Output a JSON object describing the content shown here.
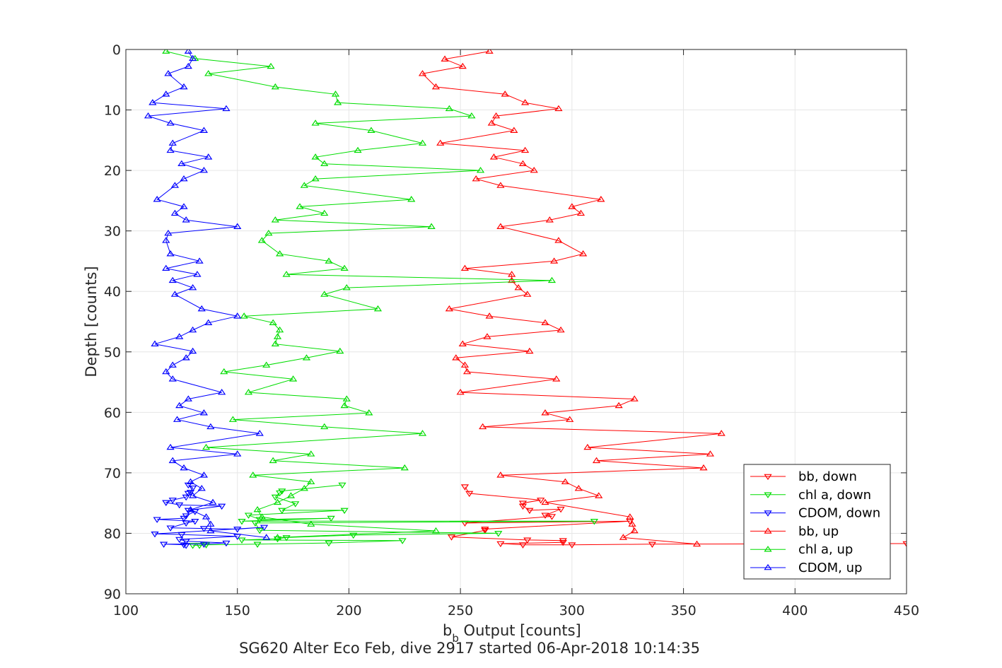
{
  "chart_data": {
    "type": "scatter",
    "title": "",
    "xlabel_main": "b",
    "xlabel_sub": "b",
    "xlabel_rest": " Output [counts]",
    "ylabel": "Depth [counts]",
    "caption": "SG620 Alter Eco Feb, dive 2917 started 06-Apr-2018 10:14:35",
    "xlim": [
      100,
      450
    ],
    "ylim": [
      0,
      90
    ],
    "y_reversed": true,
    "grid": true,
    "legend_position": "bottom-right",
    "x_ticks": [
      100,
      150,
      200,
      250,
      300,
      350,
      400,
      450
    ],
    "y_ticks": [
      0,
      10,
      20,
      30,
      40,
      50,
      60,
      70,
      80,
      90
    ],
    "series": [
      {
        "name": "bb, down",
        "color": "#ff0000",
        "marker": "triangle-down",
        "points": [
          [
            252,
            72.3
          ],
          [
            254,
            73.4
          ],
          [
            286,
            74.5
          ],
          [
            278,
            75.0
          ],
          [
            278,
            75.5
          ],
          [
            281,
            76.2
          ],
          [
            295,
            76.0
          ],
          [
            288,
            77.0
          ],
          [
            291,
            77.2
          ],
          [
            252,
            78.3
          ],
          [
            326,
            78.0
          ],
          [
            261,
            79.3
          ],
          [
            261,
            79.5
          ],
          [
            246,
            80.6
          ],
          [
            280,
            81.1
          ],
          [
            296,
            81.2
          ],
          [
            296,
            81.5
          ],
          [
            268,
            81.7
          ],
          [
            278,
            81.9
          ],
          [
            300,
            81.9
          ],
          [
            336,
            81.8
          ],
          [
            450,
            81.7
          ]
        ]
      },
      {
        "name": "chl a, down",
        "color": "#00dd00",
        "marker": "triangle-down",
        "points": [
          [
            197,
            72.0
          ],
          [
            170,
            73.0
          ],
          [
            169,
            73.3
          ],
          [
            167,
            74.0
          ],
          [
            176,
            75.1
          ],
          [
            170,
            76.2
          ],
          [
            198,
            76.2
          ],
          [
            155,
            77.0
          ],
          [
            160,
            77.7
          ],
          [
            192,
            77.5
          ],
          [
            152,
            78.0
          ],
          [
            310,
            78.0
          ],
          [
            158,
            78.3
          ],
          [
            160,
            79.5
          ],
          [
            267,
            80.0
          ],
          [
            202,
            80.3
          ],
          [
            172,
            80.7
          ],
          [
            168,
            80.9
          ],
          [
            152,
            81.1
          ],
          [
            224,
            81.2
          ],
          [
            191,
            81.6
          ],
          [
            159,
            81.8
          ],
          [
            136,
            81.9
          ],
          [
            133,
            82.0
          ],
          [
            130,
            82.0
          ]
        ]
      },
      {
        "name": "CDOM, down",
        "color": "#0000ff",
        "marker": "triangle-down",
        "points": [
          [
            128,
            72.0
          ],
          [
            130,
            72.5
          ],
          [
            129,
            73.2
          ],
          [
            128,
            73.4
          ],
          [
            127,
            74.0
          ],
          [
            121,
            74.5
          ],
          [
            118,
            74.9
          ],
          [
            124,
            75.3
          ],
          [
            143,
            75.5
          ],
          [
            128,
            76.2
          ],
          [
            131,
            76.4
          ],
          [
            127,
            77.1
          ],
          [
            126,
            77.5
          ],
          [
            114,
            77.7
          ],
          [
            131,
            78.0
          ],
          [
            127,
            78.3
          ],
          [
            120,
            79.1
          ],
          [
            135,
            79.2
          ],
          [
            150,
            79.3
          ],
          [
            162,
            79.0
          ],
          [
            113,
            80.1
          ],
          [
            125,
            80.2
          ],
          [
            150,
            80.5
          ],
          [
            124,
            81.0
          ],
          [
            127,
            81.3
          ],
          [
            145,
            81.6
          ],
          [
            135,
            81.8
          ],
          [
            117,
            81.8
          ],
          [
            126,
            81.9
          ],
          [
            127,
            82.0
          ]
        ]
      },
      {
        "name": "bb, up",
        "color": "#ff0000",
        "marker": "triangle-up",
        "points": [
          [
            263,
            0.3
          ],
          [
            243,
            1.6
          ],
          [
            251,
            2.8
          ],
          [
            233,
            4.0
          ],
          [
            239,
            6.2
          ],
          [
            270,
            7.4
          ],
          [
            279,
            8.8
          ],
          [
            294,
            9.8
          ],
          [
            266,
            11.0
          ],
          [
            264,
            12.2
          ],
          [
            274,
            13.4
          ],
          [
            241,
            15.5
          ],
          [
            279,
            16.7
          ],
          [
            265,
            17.8
          ],
          [
            278,
            18.9
          ],
          [
            283,
            20.0
          ],
          [
            257,
            21.4
          ],
          [
            268,
            22.5
          ],
          [
            313,
            24.8
          ],
          [
            300,
            26.0
          ],
          [
            304,
            27.1
          ],
          [
            290,
            28.2
          ],
          [
            268,
            29.3
          ],
          [
            294,
            31.6
          ],
          [
            305,
            33.8
          ],
          [
            292,
            35.0
          ],
          [
            252,
            36.2
          ],
          [
            273,
            37.2
          ],
          [
            273,
            38.2
          ],
          [
            276,
            39.4
          ],
          [
            280,
            40.5
          ],
          [
            245,
            42.9
          ],
          [
            263,
            44.1
          ],
          [
            288,
            45.2
          ],
          [
            295,
            46.4
          ],
          [
            262,
            47.5
          ],
          [
            251,
            48.7
          ],
          [
            281,
            49.9
          ],
          [
            248,
            51.0
          ],
          [
            252,
            52.2
          ],
          [
            253,
            53.3
          ],
          [
            293,
            54.5
          ],
          [
            250,
            56.7
          ],
          [
            328,
            57.8
          ],
          [
            321,
            58.9
          ],
          [
            288,
            60.1
          ],
          [
            299,
            61.2
          ],
          [
            260,
            62.4
          ],
          [
            367,
            63.5
          ],
          [
            307,
            65.8
          ],
          [
            362,
            66.9
          ],
          [
            311,
            68.0
          ],
          [
            359,
            69.2
          ],
          [
            268,
            70.4
          ],
          [
            297,
            71.5
          ],
          [
            303,
            72.6
          ],
          [
            312,
            73.8
          ],
          [
            288,
            74.9
          ],
          [
            326,
            77.3
          ],
          [
            327,
            78.5
          ],
          [
            328,
            79.6
          ],
          [
            323,
            80.7
          ],
          [
            356,
            81.8
          ]
        ]
      },
      {
        "name": "chl a, up",
        "color": "#00dd00",
        "marker": "triangle-up",
        "points": [
          [
            118,
            0.3
          ],
          [
            131,
            1.5
          ],
          [
            165,
            2.8
          ],
          [
            137,
            4.0
          ],
          [
            167,
            6.2
          ],
          [
            194,
            7.4
          ],
          [
            195,
            8.8
          ],
          [
            245,
            9.8
          ],
          [
            255,
            11.0
          ],
          [
            185,
            12.2
          ],
          [
            210,
            13.4
          ],
          [
            233,
            15.5
          ],
          [
            204,
            16.7
          ],
          [
            185,
            17.8
          ],
          [
            189,
            18.9
          ],
          [
            259,
            20.0
          ],
          [
            185,
            21.4
          ],
          [
            180,
            22.5
          ],
          [
            228,
            24.8
          ],
          [
            178,
            26.0
          ],
          [
            189,
            27.1
          ],
          [
            167,
            28.2
          ],
          [
            237,
            29.3
          ],
          [
            164,
            30.4
          ],
          [
            161,
            31.6
          ],
          [
            169,
            33.8
          ],
          [
            191,
            35.0
          ],
          [
            198,
            36.2
          ],
          [
            172,
            37.2
          ],
          [
            291,
            38.2
          ],
          [
            199,
            39.4
          ],
          [
            189,
            40.5
          ],
          [
            213,
            42.9
          ],
          [
            153,
            44.1
          ],
          [
            166,
            45.2
          ],
          [
            169,
            46.4
          ],
          [
            168,
            47.5
          ],
          [
            167,
            48.7
          ],
          [
            196,
            49.9
          ],
          [
            181,
            51.0
          ],
          [
            163,
            52.2
          ],
          [
            144,
            53.3
          ],
          [
            175,
            54.5
          ],
          [
            155,
            56.7
          ],
          [
            199,
            57.8
          ],
          [
            198,
            58.9
          ],
          [
            209,
            60.1
          ],
          [
            148,
            61.2
          ],
          [
            189,
            62.4
          ],
          [
            233,
            63.5
          ],
          [
            136,
            65.8
          ],
          [
            183,
            66.9
          ],
          [
            166,
            68.0
          ],
          [
            225,
            69.2
          ],
          [
            157,
            70.4
          ],
          [
            183,
            71.5
          ],
          [
            180,
            72.6
          ],
          [
            174,
            73.8
          ],
          [
            168,
            74.9
          ],
          [
            159,
            76.1
          ],
          [
            161,
            77.3
          ],
          [
            183,
            78.5
          ],
          [
            239,
            79.6
          ],
          [
            168,
            80.7
          ]
        ]
      },
      {
        "name": "CDOM, up",
        "color": "#0000ff",
        "marker": "triangle-up",
        "points": [
          [
            128,
            0.3
          ],
          [
            130,
            1.5
          ],
          [
            128,
            2.8
          ],
          [
            119,
            4.0
          ],
          [
            126,
            6.2
          ],
          [
            118,
            7.4
          ],
          [
            112,
            8.8
          ],
          [
            145,
            9.8
          ],
          [
            110,
            11.0
          ],
          [
            120,
            12.2
          ],
          [
            135,
            13.4
          ],
          [
            121,
            15.5
          ],
          [
            120,
            16.7
          ],
          [
            137,
            17.8
          ],
          [
            125,
            18.9
          ],
          [
            135,
            20.0
          ],
          [
            126,
            21.4
          ],
          [
            122,
            22.5
          ],
          [
            114,
            24.8
          ],
          [
            126,
            26.0
          ],
          [
            122,
            27.1
          ],
          [
            127,
            28.2
          ],
          [
            150,
            29.3
          ],
          [
            119,
            30.4
          ],
          [
            118,
            31.6
          ],
          [
            120,
            33.8
          ],
          [
            133,
            35.0
          ],
          [
            118,
            36.2
          ],
          [
            132,
            37.2
          ],
          [
            121,
            38.2
          ],
          [
            130,
            39.4
          ],
          [
            122,
            40.5
          ],
          [
            134,
            42.9
          ],
          [
            150,
            44.1
          ],
          [
            137,
            45.2
          ],
          [
            130,
            46.4
          ],
          [
            124,
            47.5
          ],
          [
            113,
            48.7
          ],
          [
            130,
            49.9
          ],
          [
            127,
            51.0
          ],
          [
            121,
            52.2
          ],
          [
            118,
            53.3
          ],
          [
            121,
            54.5
          ],
          [
            143,
            56.7
          ],
          [
            128,
            57.8
          ],
          [
            124,
            58.9
          ],
          [
            135,
            60.1
          ],
          [
            123,
            61.2
          ],
          [
            138,
            62.4
          ],
          [
            160,
            63.5
          ],
          [
            120,
            65.8
          ],
          [
            150,
            66.9
          ],
          [
            121,
            68.0
          ],
          [
            126,
            69.2
          ],
          [
            135,
            70.4
          ],
          [
            129,
            71.5
          ],
          [
            134,
            72.6
          ],
          [
            130,
            73.8
          ],
          [
            139,
            74.9
          ],
          [
            129,
            76.1
          ],
          [
            136,
            77.3
          ],
          [
            138,
            78.5
          ],
          [
            138,
            79.6
          ],
          [
            163,
            80.7
          ]
        ]
      }
    ]
  }
}
